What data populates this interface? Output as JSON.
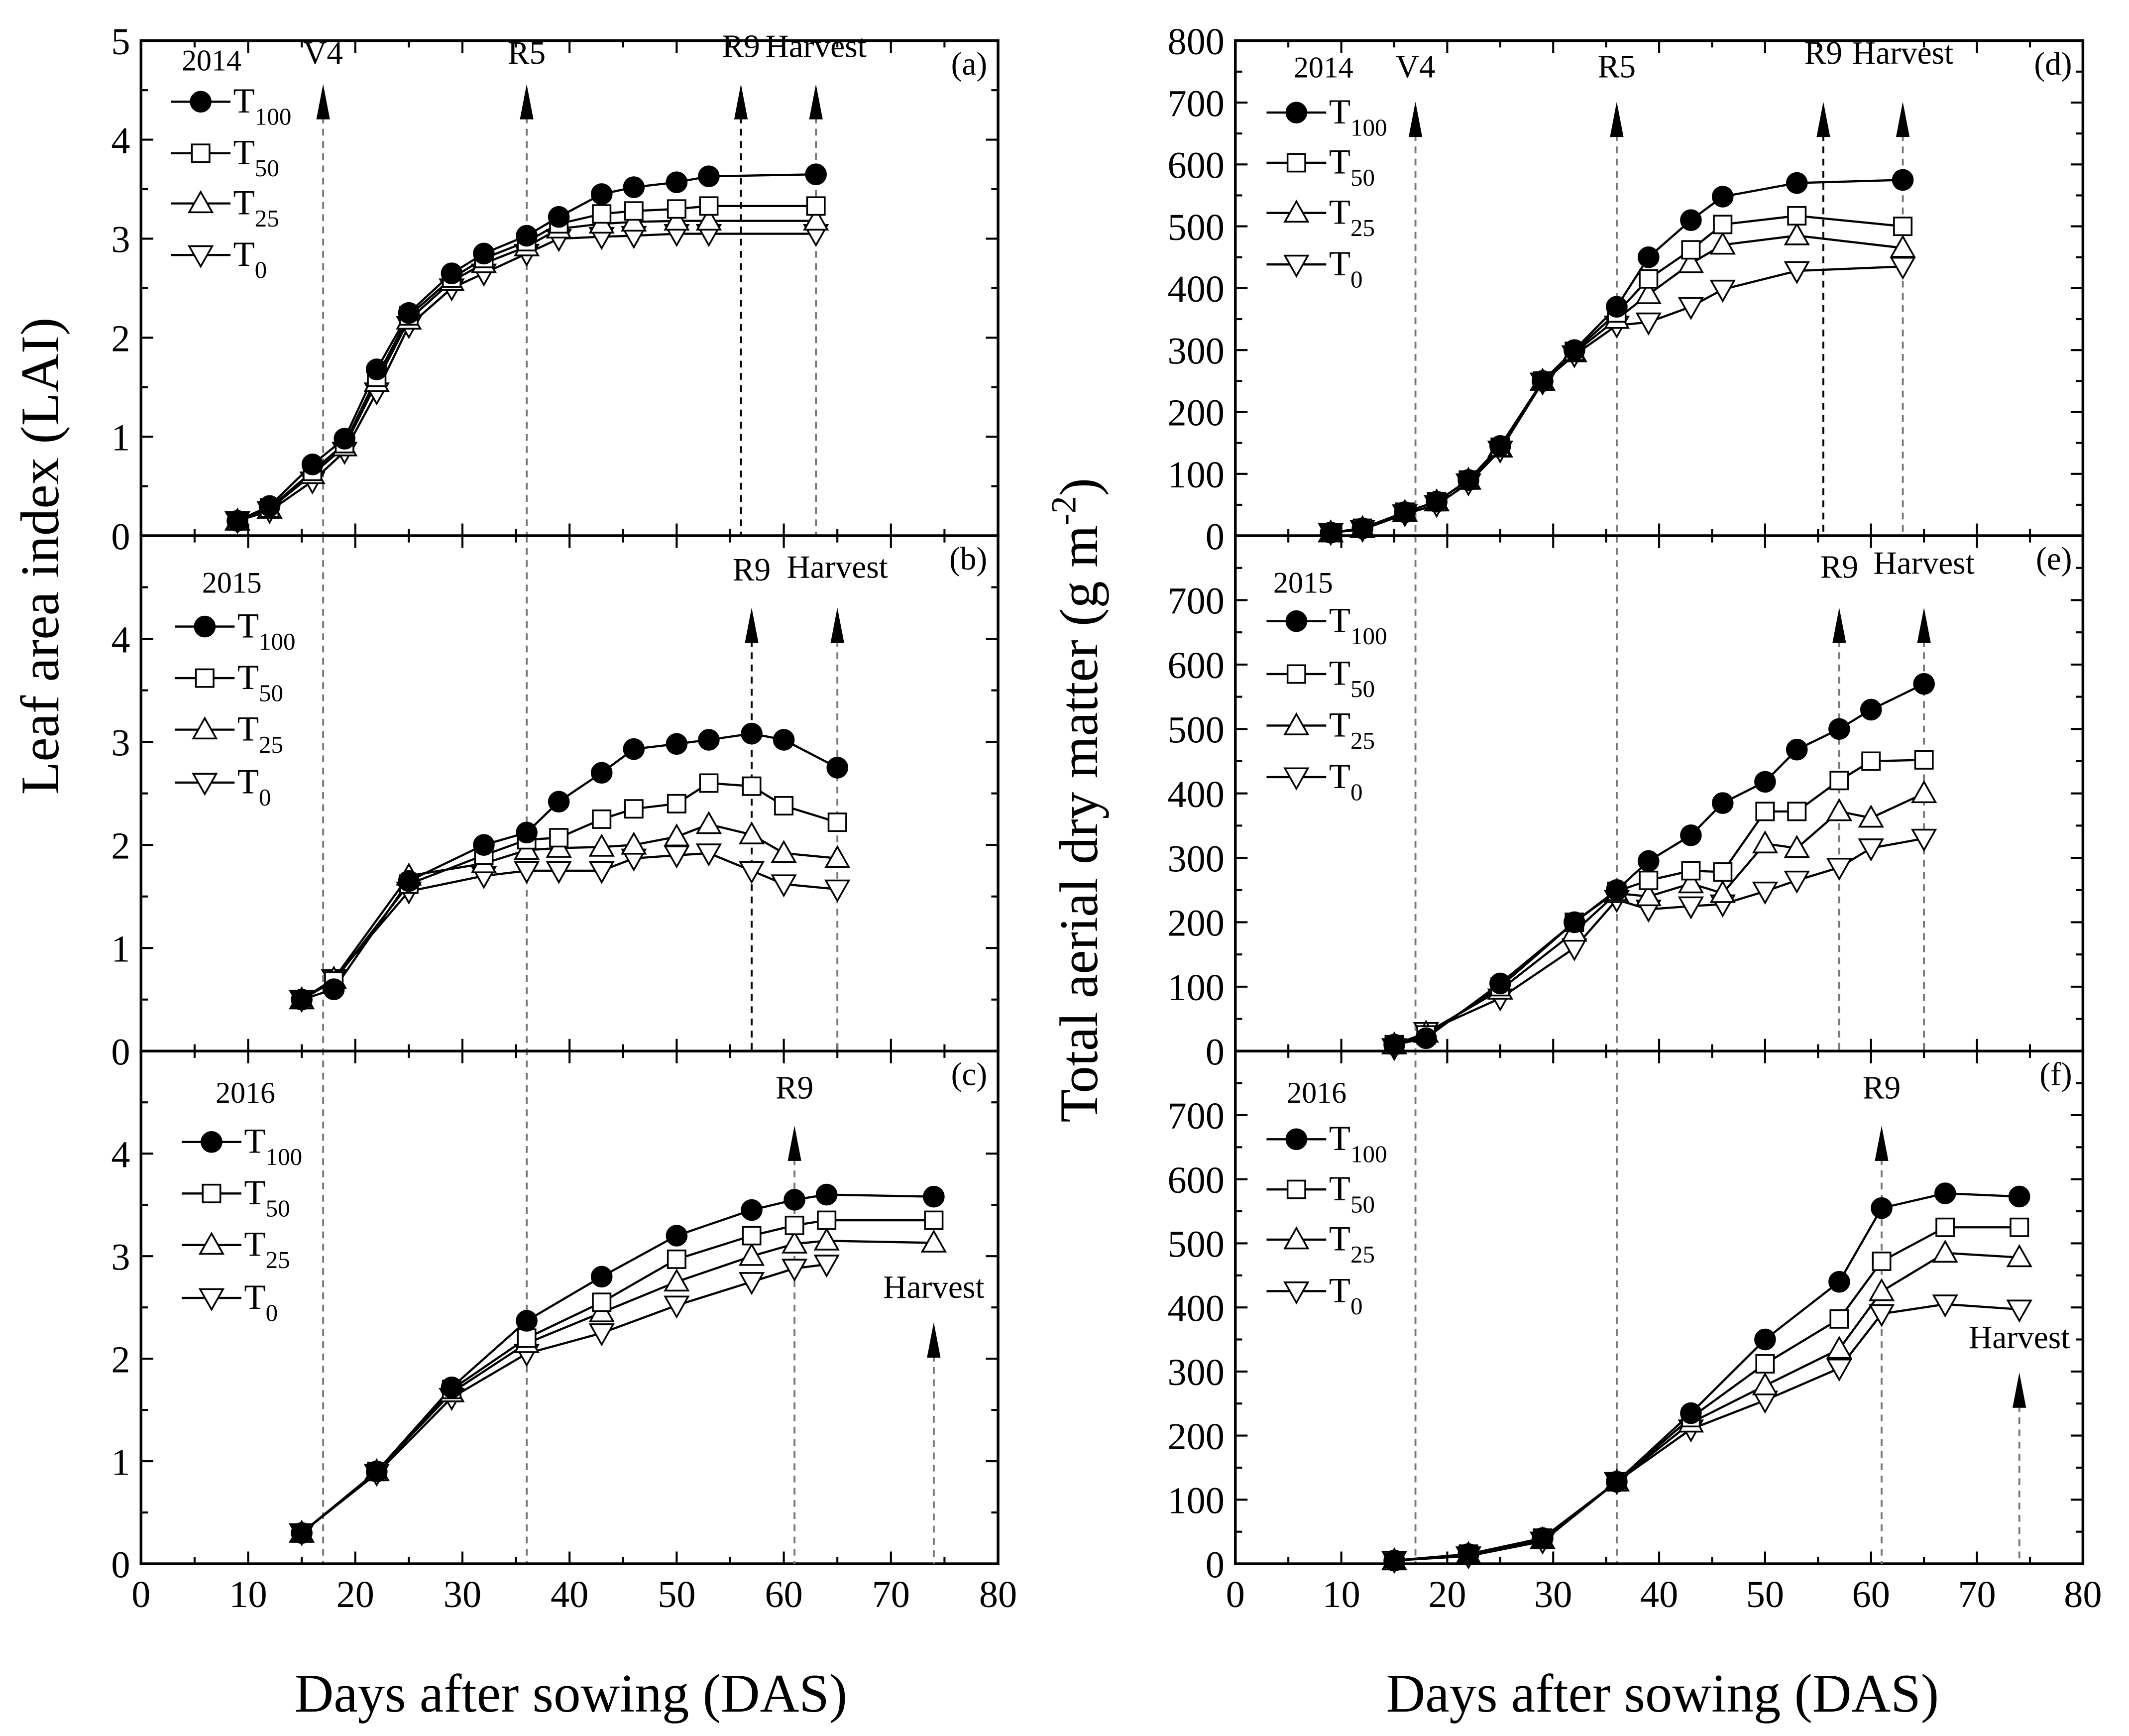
{
  "figure": {
    "ylabel_left": "Leaf area index (LAI)",
    "ylabel_right_main": "Total aerial dry matter (g m",
    "ylabel_right_sup": "-2",
    "ylabel_right_end": ")",
    "xlabel": "Days after sowing (DAS)"
  },
  "legend": [
    {
      "base": "T",
      "sub": "100",
      "marker": "filled-circle"
    },
    {
      "base": "T",
      "sub": "50",
      "marker": "open-square"
    },
    {
      "base": "T",
      "sub": "25",
      "marker": "open-triangle-up"
    },
    {
      "base": "T",
      "sub": "0",
      "marker": "open-triangle-down"
    }
  ],
  "chart_data": [
    {
      "type": "line",
      "panel": "(a)",
      "year": "2014",
      "ylabel": "Leaf area index (LAI)",
      "xlabel": "Days after sowing (DAS)",
      "xlim": [
        0,
        80
      ],
      "ylim": [
        0,
        5
      ],
      "yticks": [
        0,
        1,
        2,
        3,
        4,
        5
      ],
      "xticks": [],
      "x": [
        9,
        12,
        16,
        19,
        22,
        25,
        29,
        32,
        36,
        39,
        43,
        46,
        50,
        53,
        63
      ],
      "series": [
        {
          "name": "T100",
          "values": [
            0.15,
            0.3,
            0.72,
            0.98,
            1.68,
            2.25,
            2.65,
            2.85,
            3.03,
            3.22,
            3.45,
            3.52,
            3.57,
            3.63,
            3.65
          ]
        },
        {
          "name": "T50",
          "values": [
            0.15,
            0.28,
            0.65,
            0.93,
            1.6,
            2.22,
            2.6,
            2.8,
            2.97,
            3.15,
            3.25,
            3.28,
            3.3,
            3.33,
            3.33
          ]
        },
        {
          "name": "T25",
          "values": [
            0.15,
            0.27,
            0.62,
            0.9,
            1.55,
            2.18,
            2.57,
            2.75,
            2.92,
            3.1,
            3.15,
            3.17,
            3.18,
            3.18,
            3.18
          ]
        },
        {
          "name": "T0",
          "values": [
            0.15,
            0.25,
            0.55,
            0.85,
            1.45,
            2.12,
            2.5,
            2.65,
            2.85,
            3.0,
            3.02,
            3.03,
            3.05,
            3.05,
            3.05
          ]
        }
      ],
      "annotations": [
        {
          "label": "V4",
          "day": 17
        },
        {
          "label": "R5",
          "day": 36
        },
        {
          "label": "R9",
          "day": 56
        },
        {
          "label": "Harvest",
          "day": 63
        }
      ]
    },
    {
      "type": "line",
      "panel": "(b)",
      "year": "2015",
      "ylabel": "Leaf area index (LAI)",
      "xlim": [
        0,
        80
      ],
      "ylim": [
        0,
        5
      ],
      "yticks": [
        0,
        1,
        2,
        3,
        4
      ],
      "xticks": [],
      "x": [
        15,
        18,
        25,
        32,
        36,
        39,
        43,
        46,
        50,
        53,
        57,
        60,
        65
      ],
      "series": [
        {
          "name": "T100",
          "values": [
            0.5,
            0.6,
            1.65,
            2.0,
            2.12,
            2.42,
            2.7,
            2.93,
            2.98,
            3.02,
            3.08,
            3.02,
            2.75
          ]
        },
        {
          "name": "T50",
          "values": [
            0.5,
            0.68,
            1.62,
            1.9,
            2.05,
            2.07,
            2.25,
            2.35,
            2.4,
            2.6,
            2.57,
            2.38,
            2.22
          ]
        },
        {
          "name": "T25",
          "values": [
            0.5,
            0.7,
            1.7,
            1.82,
            1.95,
            1.97,
            1.98,
            2.0,
            2.08,
            2.2,
            2.1,
            1.92,
            1.87
          ]
        },
        {
          "name": "T0",
          "values": [
            0.5,
            0.7,
            1.55,
            1.7,
            1.75,
            1.75,
            1.75,
            1.87,
            1.9,
            1.92,
            1.75,
            1.62,
            1.57
          ]
        }
      ],
      "annotations": [
        {
          "label": "R9",
          "day": 57
        },
        {
          "label": "Harvest",
          "day": 65
        }
      ]
    },
    {
      "type": "line",
      "panel": "(c)",
      "year": "2016",
      "ylabel": "Leaf area index (LAI)",
      "xlabel": "Days after sowing (DAS)",
      "xlim": [
        0,
        80
      ],
      "ylim": [
        0,
        5
      ],
      "yticks": [
        0,
        1,
        2,
        3,
        4
      ],
      "xticks": [
        0,
        10,
        20,
        30,
        40,
        50,
        60,
        70,
        80
      ],
      "x": [
        15,
        22,
        29,
        36,
        43,
        50,
        57,
        61,
        64,
        74
      ],
      "series": [
        {
          "name": "T100",
          "values": [
            0.3,
            0.9,
            1.72,
            2.37,
            2.8,
            3.2,
            3.45,
            3.55,
            3.6,
            3.58
          ]
        },
        {
          "name": "T50",
          "values": [
            0.3,
            0.9,
            1.7,
            2.2,
            2.55,
            2.97,
            3.2,
            3.3,
            3.35,
            3.35
          ]
        },
        {
          "name": "T25",
          "values": [
            0.3,
            0.9,
            1.67,
            2.15,
            2.45,
            2.75,
            3.0,
            3.12,
            3.15,
            3.13
          ]
        },
        {
          "name": "T0",
          "values": [
            0.3,
            0.88,
            1.62,
            2.05,
            2.25,
            2.52,
            2.75,
            2.88,
            2.92,
            null
          ]
        }
      ],
      "annotations": [
        {
          "label": "R9",
          "day": 61
        },
        {
          "label": "Harvest",
          "day": 74
        }
      ]
    },
    {
      "type": "line",
      "panel": "(d)",
      "year": "2014",
      "ylabel": "Total aerial dry matter (g m-2)",
      "xlim": [
        0,
        80
      ],
      "ylim": [
        0,
        800
      ],
      "yticks": [
        0,
        100,
        200,
        300,
        400,
        500,
        600,
        700,
        800
      ],
      "xticks": [],
      "x": [
        9,
        12,
        16,
        19,
        22,
        25,
        29,
        32,
        36,
        39,
        43,
        46,
        53,
        63
      ],
      "series": [
        {
          "name": "T100",
          "values": [
            5,
            12,
            38,
            55,
            90,
            145,
            250,
            300,
            370,
            450,
            510,
            548,
            570,
            575
          ]
        },
        {
          "name": "T50",
          "values": [
            5,
            12,
            38,
            55,
            90,
            143,
            250,
            298,
            360,
            415,
            462,
            503,
            517,
            500
          ]
        },
        {
          "name": "T25",
          "values": [
            5,
            12,
            38,
            55,
            90,
            142,
            250,
            296,
            350,
            390,
            440,
            470,
            485,
            465
          ]
        },
        {
          "name": "T0",
          "values": [
            5,
            10,
            35,
            50,
            85,
            138,
            248,
            292,
            340,
            345,
            370,
            398,
            428,
            435
          ]
        }
      ],
      "annotations": [
        {
          "label": "V4",
          "day": 17
        },
        {
          "label": "R5",
          "day": 36
        },
        {
          "label": "R9",
          "day": 55.5
        },
        {
          "label": "Harvest",
          "day": 63
        }
      ]
    },
    {
      "type": "line",
      "panel": "(e)",
      "year": "2015",
      "ylabel": "Total aerial dry matter (g m-2)",
      "xlim": [
        0,
        80
      ],
      "ylim": [
        0,
        800
      ],
      "yticks": [
        0,
        100,
        200,
        300,
        400,
        500,
        600,
        700
      ],
      "xticks": [],
      "x": [
        15,
        18,
        25,
        32,
        36,
        39,
        43,
        46,
        50,
        53,
        57,
        60,
        65
      ],
      "series": [
        {
          "name": "T100",
          "values": [
            10,
            20,
            105,
            200,
            250,
            295,
            335,
            385,
            418,
            468,
            500,
            530,
            570
          ]
        },
        {
          "name": "T50",
          "values": [
            10,
            25,
            100,
            200,
            248,
            265,
            280,
            278,
            372,
            372,
            420,
            450,
            452
          ]
        },
        {
          "name": "T25",
          "values": [
            10,
            28,
            95,
            185,
            245,
            240,
            260,
            245,
            322,
            315,
            372,
            362,
            400
          ]
        },
        {
          "name": "T0",
          "values": [
            5,
            30,
            82,
            160,
            235,
            220,
            225,
            228,
            248,
            265,
            285,
            315,
            330
          ]
        }
      ],
      "annotations": [
        {
          "label": "R9",
          "day": 57
        },
        {
          "label": "Harvest",
          "day": 65
        }
      ]
    },
    {
      "type": "line",
      "panel": "(f)",
      "year": "2016",
      "ylabel": "Total aerial dry matter (g m-2)",
      "xlabel": "Days after sowing (DAS)",
      "xlim": [
        0,
        80
      ],
      "ylim": [
        0,
        800
      ],
      "yticks": [
        0,
        100,
        200,
        300,
        400,
        500,
        600,
        700
      ],
      "xticks": [
        0,
        10,
        20,
        30,
        40,
        50,
        60,
        70,
        80
      ],
      "x": [
        15,
        22,
        29,
        36,
        43,
        50,
        57,
        61,
        67,
        74
      ],
      "series": [
        {
          "name": "T100",
          "values": [
            5,
            15,
            40,
            128,
            235,
            350,
            440,
            555,
            578,
            573
          ]
        },
        {
          "name": "T50",
          "values": [
            5,
            15,
            40,
            128,
            228,
            312,
            382,
            472,
            525,
            525
          ]
        },
        {
          "name": "T25",
          "values": [
            5,
            15,
            38,
            128,
            220,
            278,
            335,
            425,
            485,
            478
          ]
        },
        {
          "name": "T0",
          "values": [
            5,
            12,
            35,
            128,
            210,
            255,
            305,
            390,
            405,
            397
          ]
        }
      ],
      "annotations": [
        {
          "label": "R9",
          "day": 61
        },
        {
          "label": "Harvest",
          "day": 74
        }
      ]
    }
  ]
}
